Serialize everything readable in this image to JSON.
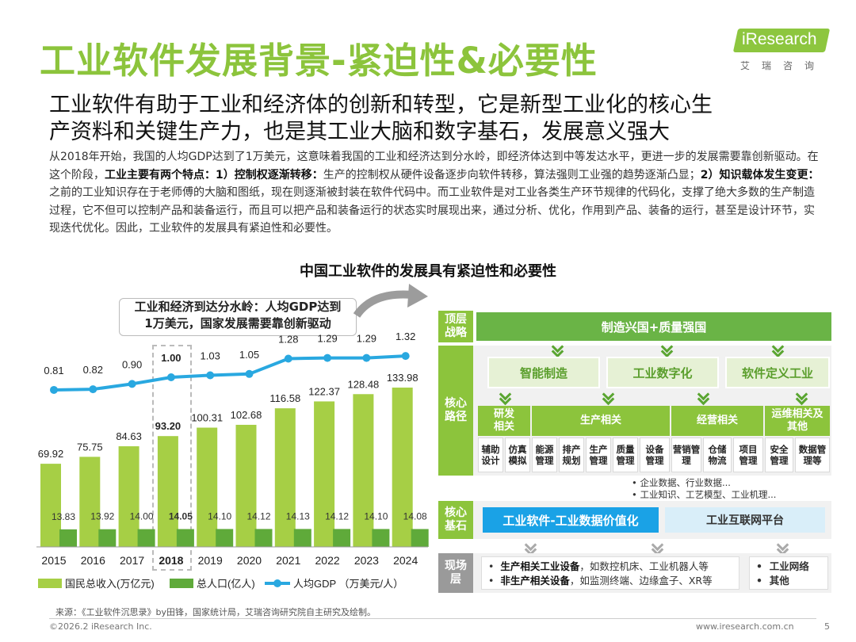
{
  "header": {
    "title": "工业软件发展背景-紧迫性&必要性",
    "logo_text": "iResearch",
    "logo_sub": "艾瑞咨询"
  },
  "subtitle_lines": [
    "工业软件有助于工业和经济体的创新和转型，它是新型工业化的核心生",
    "产资料和关键生产力，也是其工业大脑和数字基石，发展意义强大"
  ],
  "body": {
    "p1": "从2018年开始，我国的人均GDP达到了1万美元，这意味着我国的工业和经济达到分水岭，即经济体达到中等发达水平，更进一步的发展需要靠创新驱动。在这个阶段，",
    "p2_bold": "工业主要有两个特点：1）控制权逐渐转移：",
    "p3": "生产的控制权从硬件设备逐步向软件转移，算法强则工业强的趋势逐渐凸显；",
    "p4_bold": "2）知识载体发生变更：",
    "p5": "之前的工业知识存在于老师傅的大脑和图纸，现在则逐渐被封装在软件代码中。而工业软件是对工业各类生产环节规律的代码化，支撑了绝大多数的生产制造过程，它不但可以控制产品和装备运行，而且可以把产品和装备运行的状态实时展现出来，通过分析、优化，作用到产品、装备的运行，甚至是设计环节，实现迭代优化。因此，工业软件的发展具有紧迫性和必要性。"
  },
  "chart_title": "中国工业软件的发展具有紧迫性和必要性",
  "callout": {
    "line1": "工业和经济到达分水岭：人均GDP达到",
    "line2": "1万美元，国家发展需要靠创新驱动"
  },
  "chart_data": {
    "type": "bar+line",
    "categories": [
      "2015",
      "2016",
      "2017",
      "2018",
      "2019",
      "2020",
      "2021",
      "2022",
      "2023",
      "2024"
    ],
    "series": [
      {
        "name": "国民总收入(万亿元)",
        "kind": "bar",
        "color": "#a6cf45",
        "values": [
          69.92,
          75.75,
          84.63,
          93.2,
          100.31,
          102.68,
          116.58,
          122.37,
          128.48,
          133.98
        ]
      },
      {
        "name": "总人口(亿人)",
        "kind": "bar",
        "color": "#5faa3a",
        "values": [
          13.83,
          13.92,
          14.0,
          14.05,
          14.1,
          14.12,
          14.13,
          14.12,
          14.1,
          14.08
        ]
      },
      {
        "name": "人均GDP （万美元/人）",
        "kind": "line",
        "color": "#29a8e0",
        "values": [
          0.81,
          0.82,
          0.9,
          1.0,
          1.03,
          1.05,
          1.28,
          1.29,
          1.29,
          1.32
        ]
      }
    ],
    "value_labels": {
      "gni": [
        "69.92",
        "75.75",
        "84.63",
        "93.20",
        "100.31",
        "102.68",
        "116.58",
        "122.37",
        "128.48",
        "133.98"
      ],
      "pop": [
        "13.83",
        "13.92",
        "14.00",
        "14.05",
        "14.10",
        "14.12",
        "14.13",
        "14.12",
        "14.10",
        "14.08"
      ],
      "gdp": [
        "0.81",
        "0.82",
        "0.90",
        "1.00",
        "1.03",
        "1.05",
        "1.28",
        "1.29",
        "1.29",
        "1.32"
      ]
    },
    "highlight_category": "2018",
    "legend_position": "bottom"
  },
  "diagram": {
    "top_label": "顶层\n战略",
    "top_bar": "制造兴国+质量强国",
    "core_label": "核心\n路径",
    "core_boxes": [
      "智能制造",
      "工业数字化",
      "软件定义工业"
    ],
    "categories": [
      "研发\n相关",
      "生产相关",
      "经营相关",
      "运维相关及\n其他"
    ],
    "cells": [
      "辅助\n设计",
      "仿真\n模拟",
      "能源\n管理",
      "排产\n规划",
      "生产\n管理",
      "质量\n管理",
      "设备\n管理",
      "营销管\n理",
      "仓储\n物流",
      "项目\n管理",
      "安全\n管理",
      "数据管\n理等"
    ],
    "data_bullets": [
      "企业数据、行业数据...",
      "工业知识、工艺模型、工业机理..."
    ],
    "base_label": "核心\n基石",
    "base_a": "工业软件-工业数据价值化",
    "base_b": "工业互联网平台",
    "field_label": "现场\n层",
    "field_items": [
      {
        "bold": "生产相关工业设备",
        "rest": "，如数控机床、工业机器人等"
      },
      {
        "bold": "非生产相关设备",
        "rest": "，如监测终端、边缘盒子、XR等"
      }
    ],
    "field_right": [
      "工业网络",
      "其他"
    ]
  },
  "footer": {
    "source": "来源：《工业软件沉思录》by田锋，国家统计局，艾瑞咨询研究院自主研究及绘制。",
    "copyright": "©2026.2 iResearch Inc.",
    "site": "www.iresearch.com.cn",
    "page": "5"
  }
}
